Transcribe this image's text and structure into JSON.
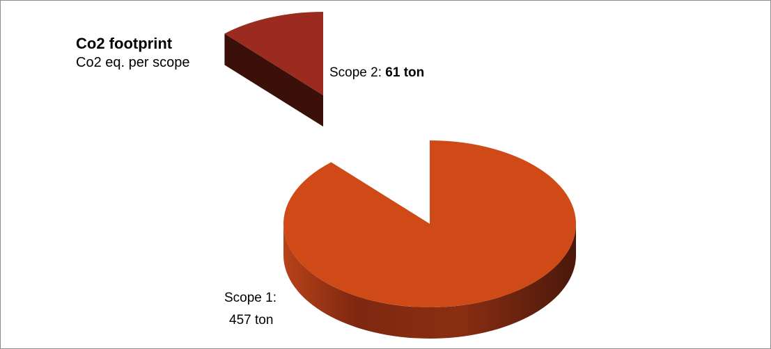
{
  "chart_data": {
    "type": "pie",
    "title": "Co2 footprint",
    "subtitle": "Co2 eq. per scope",
    "slices": [
      {
        "label": "Scope 1",
        "value": 457,
        "unit": "ton",
        "color": "#d04a18"
      },
      {
        "label": "Scope 2",
        "value": 61,
        "unit": "ton",
        "color": "#9a2b1e"
      }
    ],
    "three_d": true,
    "exploded": true,
    "legend": "none"
  },
  "labels": {
    "scope1_name": "Scope 1:",
    "scope1_value": "457 ton",
    "scope2_name": "Scope 2: ",
    "scope2_value": "61 ton"
  }
}
